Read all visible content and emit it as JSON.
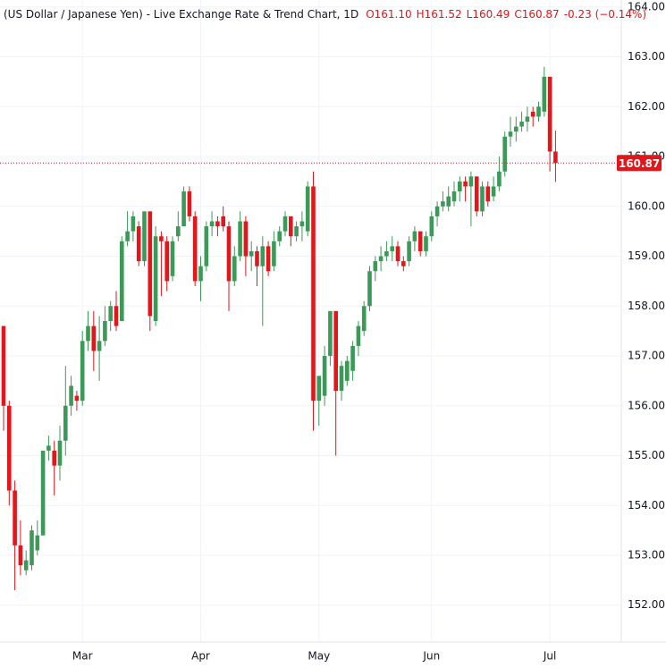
{
  "chart_data": {
    "type": "candlestick",
    "title": "(US Dollar / Japanese Yen) - Live Exchange Rate & Trend Chart, 1D",
    "header_values": [
      "O161.10",
      "H161.52",
      "L160.49",
      "C160.87",
      "-0.23 (−0.14%)"
    ],
    "up_color": "#3c9a58",
    "down_color": "#e3161b",
    "grid": true,
    "ylim": [
      151.26,
      164.14
    ],
    "yticks": [
      {
        "value": 152,
        "label": "152.00"
      },
      {
        "value": 153,
        "label": "153.00"
      },
      {
        "value": 154,
        "label": "154.00"
      },
      {
        "value": 155,
        "label": "155.00"
      },
      {
        "value": 156,
        "label": "156.00"
      },
      {
        "value": 157,
        "label": "157.00"
      },
      {
        "value": 158,
        "label": "158.00"
      },
      {
        "value": 159,
        "label": "159.00"
      },
      {
        "value": 160,
        "label": "160.00"
      },
      {
        "value": 161,
        "label": "161.00"
      },
      {
        "value": 162,
        "label": "162.00"
      },
      {
        "value": 163,
        "label": "163.00"
      },
      {
        "value": 164,
        "label": "164.00"
      }
    ],
    "last_price": 160.87,
    "categories": [
      null,
      null,
      null,
      null,
      null,
      null,
      null,
      null,
      null,
      null,
      null,
      null,
      null,
      null,
      "Mar",
      null,
      null,
      null,
      null,
      null,
      null,
      null,
      null,
      null,
      null,
      null,
      null,
      null,
      null,
      null,
      null,
      null,
      null,
      null,
      null,
      "Apr",
      null,
      null,
      null,
      null,
      null,
      null,
      null,
      null,
      null,
      null,
      null,
      null,
      null,
      null,
      null,
      null,
      null,
      null,
      null,
      null,
      "May",
      null,
      null,
      null,
      null,
      null,
      null,
      null,
      null,
      null,
      null,
      null,
      null,
      null,
      null,
      null,
      null,
      null,
      null,
      null,
      "Jun",
      null,
      null,
      null,
      null,
      null,
      null,
      null,
      null,
      null,
      null,
      null,
      null,
      null,
      null,
      null,
      null,
      null,
      null,
      null,
      null,
      "Jul",
      null
    ],
    "open": [
      157.6,
      156.0,
      154.3,
      153.2,
      152.7,
      152.8,
      153.1,
      153.4,
      155.1,
      155.1,
      154.8,
      155.3,
      156.0,
      156.2,
      156.1,
      157.3,
      157.6,
      157.1,
      157.3,
      157.7,
      158.0,
      157.7,
      159.3,
      159.5,
      159.6,
      158.9,
      159.9,
      157.7,
      159.4,
      159.3,
      158.6,
      159.4,
      159.6,
      160.3,
      159.8,
      158.5,
      158.8,
      159.6,
      159.7,
      159.8,
      159.6,
      158.5,
      159.0,
      159.7,
      159.0,
      159.1,
      158.8,
      159.2,
      158.8,
      159.3,
      159.5,
      159.8,
      159.4,
      159.6,
      159.5,
      160.4,
      156.1,
      156.2,
      157.0,
      157.9,
      156.3,
      156.5,
      156.7,
      157.2,
      157.5,
      158.0,
      158.7,
      158.9,
      159.0,
      159.1,
      159.2,
      158.9,
      158.9,
      159.3,
      159.5,
      159.1,
      159.4,
      159.8,
      160.0,
      160.0,
      160.1,
      160.3,
      160.5,
      160.4,
      160.6,
      159.9,
      160.4,
      160.2,
      160.4,
      160.7,
      161.4,
      161.5,
      161.6,
      161.7,
      161.9,
      161.8,
      161.9,
      162.6,
      161.1
    ],
    "high": [
      157.6,
      156.1,
      154.5,
      153.7,
      153.1,
      153.6,
      153.7,
      155.1,
      155.4,
      155.3,
      155.6,
      156.8,
      156.6,
      156.3,
      157.5,
      157.9,
      157.9,
      157.8,
      158.0,
      158.1,
      158.3,
      159.4,
      159.9,
      159.9,
      159.7,
      159.9,
      159.9,
      159.6,
      159.5,
      159.4,
      159.4,
      159.9,
      160.4,
      160.4,
      159.9,
      159.0,
      159.7,
      159.9,
      159.8,
      160.0,
      159.7,
      159.2,
      159.9,
      159.8,
      159.3,
      159.2,
      159.4,
      159.3,
      159.5,
      159.6,
      159.9,
      159.8,
      159.7,
      159.9,
      160.5,
      160.7,
      156.6,
      157.2,
      157.9,
      157.9,
      156.9,
      157.0,
      157.3,
      157.7,
      158.1,
      158.8,
      159.0,
      159.2,
      159.3,
      159.4,
      159.3,
      159.0,
      159.4,
      159.6,
      159.5,
      159.5,
      159.9,
      160.1,
      160.3,
      160.4,
      160.5,
      160.6,
      160.6,
      160.7,
      160.6,
      160.5,
      160.5,
      160.6,
      161.0,
      161.5,
      161.8,
      161.8,
      161.9,
      162.0,
      162.0,
      162.1,
      162.8,
      162.6,
      161.52
    ],
    "low": [
      155.5,
      154.0,
      152.3,
      152.6,
      152.6,
      152.7,
      153.0,
      153.4,
      154.9,
      154.2,
      154.5,
      155.0,
      155.8,
      155.9,
      156.0,
      157.1,
      156.7,
      156.5,
      157.2,
      157.5,
      157.5,
      157.7,
      159.2,
      159.3,
      158.8,
      158.8,
      157.5,
      157.6,
      158.2,
      158.3,
      158.5,
      159.3,
      159.6,
      159.7,
      158.4,
      158.1,
      158.7,
      159.4,
      159.4,
      159.5,
      157.9,
      158.4,
      158.9,
      158.6,
      158.7,
      158.4,
      157.6,
      158.6,
      158.7,
      159.2,
      159.4,
      159.2,
      159.3,
      159.3,
      159.4,
      155.5,
      155.6,
      156.0,
      156.8,
      155.0,
      156.1,
      156.4,
      156.5,
      157.0,
      157.4,
      157.9,
      158.5,
      158.7,
      158.9,
      158.9,
      158.8,
      158.7,
      158.8,
      159.1,
      159.0,
      159.0,
      159.3,
      159.6,
      159.9,
      159.9,
      160.0,
      160.1,
      160.1,
      159.6,
      159.8,
      159.8,
      160.0,
      160.1,
      160.3,
      160.6,
      161.2,
      161.3,
      161.5,
      161.5,
      161.6,
      161.7,
      161.8,
      160.7,
      160.49
    ],
    "close": [
      156.0,
      154.3,
      153.2,
      152.8,
      152.9,
      153.5,
      153.4,
      155.1,
      155.2,
      154.8,
      155.3,
      156.0,
      156.4,
      156.1,
      157.3,
      157.6,
      157.1,
      157.3,
      157.7,
      158.0,
      157.6,
      159.3,
      159.5,
      159.8,
      158.9,
      159.9,
      157.8,
      159.4,
      159.3,
      158.5,
      159.3,
      159.6,
      160.3,
      159.8,
      158.5,
      158.8,
      159.6,
      159.7,
      159.6,
      159.6,
      158.5,
      159.0,
      159.7,
      159.0,
      159.1,
      158.8,
      159.2,
      158.7,
      159.3,
      159.5,
      159.8,
      159.4,
      159.6,
      159.7,
      160.4,
      156.1,
      156.6,
      157.0,
      157.9,
      156.3,
      156.8,
      156.9,
      157.2,
      157.6,
      158.0,
      158.7,
      158.9,
      159.0,
      159.1,
      159.2,
      158.9,
      158.8,
      159.3,
      159.5,
      159.1,
      159.4,
      159.8,
      160.0,
      160.1,
      160.2,
      160.3,
      160.5,
      160.4,
      160.6,
      159.9,
      160.4,
      160.1,
      160.4,
      160.7,
      161.4,
      161.5,
      161.6,
      161.7,
      161.8,
      161.8,
      162.0,
      162.6,
      161.1,
      160.87
    ]
  }
}
